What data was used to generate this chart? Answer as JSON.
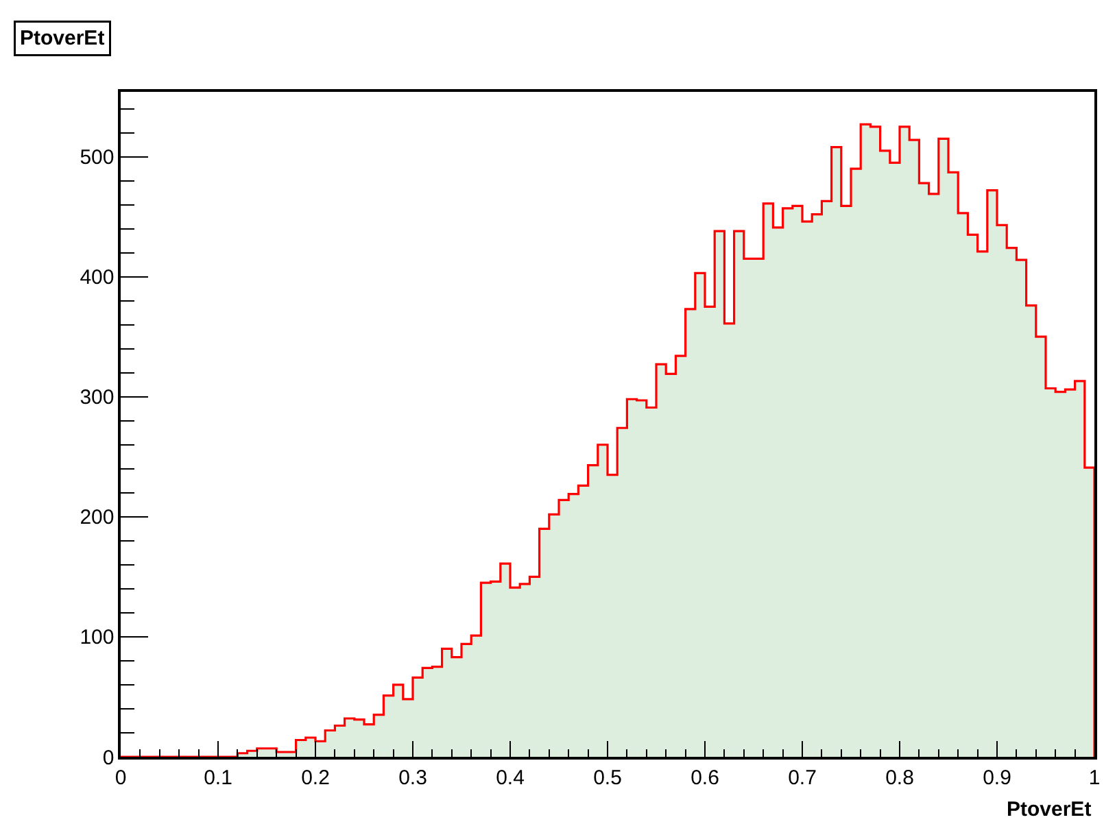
{
  "chart_data": {
    "type": "histogram",
    "title": "PtoverEt",
    "xlabel": "PtoverEt",
    "bins": [
      0,
      0.01,
      0.02,
      0.03,
      0.04,
      0.05,
      0.06,
      0.07,
      0.08,
      0.09,
      0.1,
      0.11,
      0.12,
      0.13,
      0.14,
      0.15,
      0.16,
      0.17,
      0.18,
      0.19,
      0.2,
      0.21,
      0.22,
      0.23,
      0.24,
      0.25,
      0.26,
      0.27,
      0.28,
      0.29,
      0.3,
      0.31,
      0.32,
      0.33,
      0.34,
      0.35,
      0.36,
      0.37,
      0.38,
      0.39,
      0.4,
      0.41,
      0.42,
      0.43,
      0.44,
      0.45,
      0.46,
      0.47,
      0.48,
      0.49,
      0.5,
      0.51,
      0.52,
      0.53,
      0.54,
      0.55,
      0.56,
      0.57,
      0.58,
      0.59,
      0.6,
      0.61,
      0.62,
      0.63,
      0.64,
      0.65,
      0.66,
      0.67,
      0.68,
      0.69,
      0.7,
      0.71,
      0.72,
      0.73,
      0.74,
      0.75,
      0.76,
      0.77,
      0.78,
      0.79,
      0.8,
      0.81,
      0.82,
      0.83,
      0.84,
      0.85,
      0.86,
      0.87,
      0.88,
      0.89,
      0.9,
      0.91,
      0.92,
      0.93,
      0.94,
      0.95,
      0.96,
      0.97,
      0.98,
      0.99,
      1
    ],
    "values": [
      0,
      0,
      0,
      0,
      0,
      0,
      0,
      0,
      0,
      0,
      0,
      0,
      3,
      5,
      7,
      7,
      4,
      4,
      14,
      16,
      13,
      22,
      26,
      32,
      31,
      27,
      35,
      51,
      60,
      48,
      66,
      74,
      75,
      90,
      83,
      94,
      101,
      145,
      146,
      161,
      141,
      144,
      150,
      190,
      202,
      214,
      219,
      226,
      243,
      260,
      235,
      274,
      298,
      297,
      291,
      327,
      319,
      334,
      373,
      403,
      375,
      438,
      361,
      438,
      415,
      415,
      461,
      441,
      457,
      459,
      446,
      452,
      463,
      508,
      459,
      490,
      527,
      525,
      505,
      495,
      525,
      514,
      478,
      469,
      515,
      487,
      453,
      435,
      421,
      472,
      443,
      424,
      414,
      376,
      350,
      307,
      304,
      306,
      313,
      241
    ],
    "color": "#deeede",
    "xlim": [
      0,
      1
    ],
    "xticks": [
      0,
      0.1,
      0.2,
      0.3,
      0.4,
      0.5,
      0.6,
      0.7,
      0.8,
      0.9,
      1
    ],
    "ylim": [
      0,
      554
    ],
    "yticks": [
      0,
      100,
      200,
      300,
      400,
      500
    ]
  }
}
